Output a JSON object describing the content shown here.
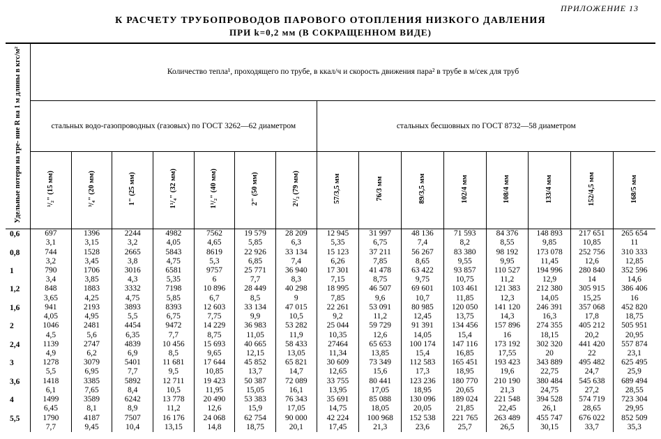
{
  "appendix_label": "ПРИЛОЖЕНИЕ 13",
  "title_line1": "К РАСЧЕТУ ТРУБОПРОВОДОВ ПАРОВОГО ОТОПЛЕНИЯ НИЗКОГО ДАВЛЕНИЯ",
  "title_line2": "ПРИ k=0,2 мм (В СОКРАЩЕННОМ ВИДЕ)",
  "header_qty": "Количество тепла¹, проходящего по трубе, в ккал/ч и скорость движения пара² в трубе в м/сек для труб",
  "header_left_group": "стальных водо-газопроводных (газовых) по ГОСТ 3262—62 диаметром",
  "header_right_group": "стальных бесшовных по ГОСТ 8732—58 диаметром",
  "side_label": "Удельные потери на тре-\nние R на 1 м длины\nв кгс/м²",
  "columns": [
    "¹/₂\" (15 мм)",
    "³/₄\" (20 мм)",
    "1\" (25 мм)",
    "1¹/₄\" (32 мм)",
    "1¹/₂\" (40 мм)",
    "2\" (50 мм)",
    "2¹/₂ (79 мм)",
    "57/3,5 мм",
    "76/3 мм",
    "89/3,5 мм",
    "102/4 мм",
    "108/4 мм",
    "133/4 мм",
    "152/4,5 мм",
    "168/5 мм"
  ],
  "rows": [
    {
      "R": "0,6",
      "cells": [
        [
          "697",
          "3,1"
        ],
        [
          "1396",
          "3,15"
        ],
        [
          "2244",
          "3,2"
        ],
        [
          "4982",
          "4,05"
        ],
        [
          "7562",
          "4,65"
        ],
        [
          "19 579",
          "5,85"
        ],
        [
          "28 209",
          "6,3"
        ],
        [
          "12 945",
          "5,35"
        ],
        [
          "31 997",
          "6,75"
        ],
        [
          "48 136",
          "7,4"
        ],
        [
          "71 593",
          "8,2"
        ],
        [
          "84 376",
          "8,55"
        ],
        [
          "148 893",
          "9,85"
        ],
        [
          "217 651",
          "10,85"
        ],
        [
          "265 654",
          "11"
        ]
      ]
    },
    {
      "R": "0,8",
      "cells": [
        [
          "744",
          "3,2"
        ],
        [
          "1528",
          "3,45"
        ],
        [
          "2665",
          "3,8"
        ],
        [
          "5843",
          "4,75"
        ],
        [
          "8619",
          "5,3"
        ],
        [
          "22 926",
          "6,85"
        ],
        [
          "33 134",
          "7,4"
        ],
        [
          "15 123",
          "6,26"
        ],
        [
          "37 211",
          "7,85"
        ],
        [
          "56 267",
          "8,65"
        ],
        [
          "83 380",
          "9,55"
        ],
        [
          "98 192",
          "9,95"
        ],
        [
          "173 078",
          "11,45"
        ],
        [
          "252 756",
          "12,6"
        ],
        [
          "310 333",
          "12,85"
        ]
      ]
    },
    {
      "R": "1",
      "cells": [
        [
          "790",
          "3,4"
        ],
        [
          "1706",
          "3,85"
        ],
        [
          "3016",
          "4,3"
        ],
        [
          "6581",
          "5,35"
        ],
        [
          "9757",
          "6"
        ],
        [
          "25 771",
          "7,7"
        ],
        [
          "36 940",
          "8,3"
        ],
        [
          "17 301",
          "7,15"
        ],
        [
          "41 478",
          "8,75"
        ],
        [
          "63 422",
          "9,75"
        ],
        [
          "93 857",
          "10,75"
        ],
        [
          "110 527",
          "11,2"
        ],
        [
          "194 996",
          "12,9"
        ],
        [
          "280 840",
          "14"
        ],
        [
          "352 596",
          "14,6"
        ]
      ]
    },
    {
      "R": "1,2",
      "cells": [
        [
          "848",
          "3,65"
        ],
        [
          "1883",
          "4,25"
        ],
        [
          "3332",
          "4,75"
        ],
        [
          "7198",
          "5,85"
        ],
        [
          "10 896",
          "6,7"
        ],
        [
          "28 449",
          "8,5"
        ],
        [
          "40 298",
          "9"
        ],
        [
          "18 995",
          "7,85"
        ],
        [
          "46 507",
          "9,6"
        ],
        [
          "69 601",
          "10,7"
        ],
        [
          "103 461",
          "11,85"
        ],
        [
          "121 383",
          "12,3"
        ],
        [
          "212 380",
          "14,05"
        ],
        [
          "305 915",
          "15,25"
        ],
        [
          "386 406",
          "16"
        ]
      ]
    },
    {
      "R": "1,6",
      "cells": [
        [
          "941",
          "4,05"
        ],
        [
          "2193",
          "4,95"
        ],
        [
          "3893",
          "5,5"
        ],
        [
          "8393",
          "6,75"
        ],
        [
          "12 603",
          "7,75"
        ],
        [
          "33 134",
          "9,9"
        ],
        [
          "47 015",
          "10,5"
        ],
        [
          "22 261",
          "9,2"
        ],
        [
          "53 091",
          "11,2"
        ],
        [
          "80 985",
          "12,45"
        ],
        [
          "120 050",
          "13,75"
        ],
        [
          "141 120",
          "14,3"
        ],
        [
          "246 391",
          "16,3"
        ],
        [
          "357 068",
          "17,8"
        ],
        [
          "452 820",
          "18,75"
        ]
      ]
    },
    {
      "R": "2",
      "cells": [
        [
          "1046",
          "4,5"
        ],
        [
          "2481",
          "5,6"
        ],
        [
          "4454",
          "6,35"
        ],
        [
          "9472",
          "7,7"
        ],
        [
          "14 229",
          "8,75"
        ],
        [
          "36 983",
          "11,05"
        ],
        [
          "53 282",
          "11,9"
        ],
        [
          "25 044",
          "10,35"
        ],
        [
          "59 729",
          "12,6"
        ],
        [
          "91 391",
          "14,05"
        ],
        [
          "134 456",
          "15,4"
        ],
        [
          "157 896",
          "16"
        ],
        [
          "274 355",
          "18,15"
        ],
        [
          "405 212",
          "20,2"
        ],
        [
          "505 951",
          "20,95"
        ]
      ]
    },
    {
      "R": "2,4",
      "cells": [
        [
          "1139",
          "4,9"
        ],
        [
          "2747",
          "6,2"
        ],
        [
          "4839",
          "6,9"
        ],
        [
          "10 456",
          "8,5"
        ],
        [
          "15 693",
          "9,65"
        ],
        [
          "40 665",
          "12,15"
        ],
        [
          "58 433",
          "13,05"
        ],
        [
          "27464",
          "11,34"
        ],
        [
          "65 653",
          "13,85"
        ],
        [
          "100 174",
          "15,4"
        ],
        [
          "147 116",
          "16,85"
        ],
        [
          "173 192",
          "17,55"
        ],
        [
          "302 320",
          "20"
        ],
        [
          "441 420",
          "22"
        ],
        [
          "557 874",
          "23,1"
        ]
      ]
    },
    {
      "R": "3",
      "cells": [
        [
          "1278",
          "5,5"
        ],
        [
          "3079",
          "6,95"
        ],
        [
          "5401",
          "7,7"
        ],
        [
          "11 681",
          "9,5"
        ],
        [
          "17 644",
          "10,85"
        ],
        [
          "45 852",
          "13,7"
        ],
        [
          "65 821",
          "14,7"
        ],
        [
          "30 609",
          "12,65"
        ],
        [
          "73 349",
          "15,6"
        ],
        [
          "112 583",
          "17,3"
        ],
        [
          "165 451",
          "18,95"
        ],
        [
          "193 423",
          "19,6"
        ],
        [
          "343 889",
          "22,75"
        ],
        [
          "495 482",
          "24,7"
        ],
        [
          "625 495",
          "25,9"
        ]
      ]
    },
    {
      "R": "3,6",
      "cells": [
        [
          "1418",
          "6,1"
        ],
        [
          "3385",
          "7,65"
        ],
        [
          "5892",
          "8,4"
        ],
        [
          "12 711",
          "10,5"
        ],
        [
          "19 423",
          "11,95"
        ],
        [
          "50 387",
          "15,05"
        ],
        [
          "72 089",
          "16,1"
        ],
        [
          "33 755",
          "13,95"
        ],
        [
          "80 441",
          "17,05"
        ],
        [
          "123 236",
          "18,95"
        ],
        [
          "180 770",
          "20,65"
        ],
        [
          "210 190",
          "21,3"
        ],
        [
          "380 484",
          "24,75"
        ],
        [
          "545 638",
          "27,2"
        ],
        [
          "689 494",
          "28,55"
        ]
      ]
    },
    {
      "R": "4",
      "cells": [
        [
          "1499",
          "6,45"
        ],
        [
          "3589",
          "8,1"
        ],
        [
          "6242",
          "8,9"
        ],
        [
          "13 778",
          "11,2"
        ],
        [
          "20 490",
          "12,6"
        ],
        [
          "53 383",
          "15,9"
        ],
        [
          "76 343",
          "17,05"
        ],
        [
          "35 691",
          "14,75"
        ],
        [
          "85 088",
          "18,05"
        ],
        [
          "130 096",
          "20,05"
        ],
        [
          "189 024",
          "21,85"
        ],
        [
          "221 548",
          "22,45"
        ],
        [
          "394 528",
          "26,1"
        ],
        [
          "574 719",
          "28,65"
        ],
        [
          "723 304",
          "29,95"
        ]
      ]
    },
    {
      "R": "5,5",
      "cells": [
        [
          "1790",
          "7,7"
        ],
        [
          "4187",
          "9,45"
        ],
        [
          "7507",
          "10,4"
        ],
        [
          "16 176",
          "13,15"
        ],
        [
          "24 068",
          "14,8"
        ],
        [
          "62 754",
          "18,75"
        ],
        [
          "90 000",
          "20,1"
        ],
        [
          "42 224",
          "17,45"
        ],
        [
          "100 968",
          "21,3"
        ],
        [
          "152 538",
          "23,6"
        ],
        [
          "221 765",
          "25,7"
        ],
        [
          "263 489",
          "26,5"
        ],
        [
          "455 747",
          "30,15"
        ],
        [
          "676 022",
          "33,7"
        ],
        [
          "852 509",
          "35,3"
        ]
      ]
    }
  ]
}
